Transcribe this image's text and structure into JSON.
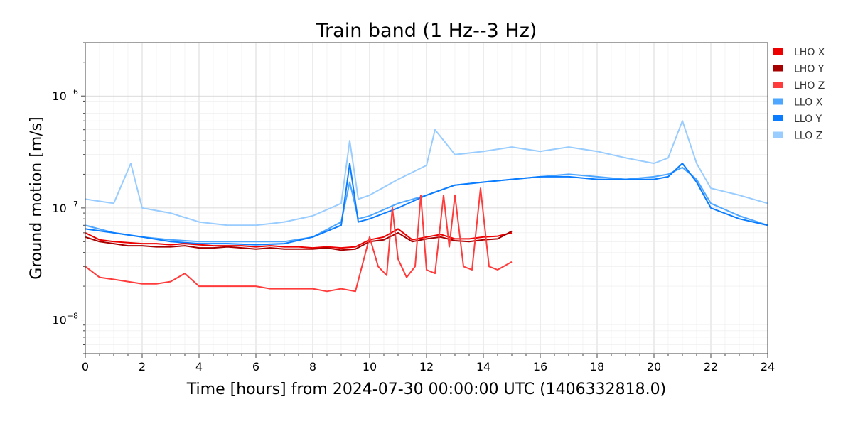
{
  "chart_data": {
    "type": "line",
    "title": "Train band (1 Hz--3 Hz)",
    "xlabel": "Time [hours] from 2024-07-30 00:00:00 UTC (1406332818.0)",
    "ylabel": "Ground motion [m/s]",
    "xlim": [
      0,
      24
    ],
    "ylim": [
      5e-09,
      3e-06
    ],
    "yscale": "log",
    "x_ticks": [
      0,
      2,
      4,
      6,
      8,
      10,
      12,
      14,
      16,
      18,
      20,
      22,
      24
    ],
    "y_ticks": [
      {
        "value": 1e-08,
        "base": "10",
        "exp": "−8"
      },
      {
        "value": 1e-07,
        "base": "10",
        "exp": "−7"
      },
      {
        "value": 1e-06,
        "base": "10",
        "exp": "−6"
      }
    ],
    "grid": true,
    "legend_position": "outside right, top",
    "series": [
      {
        "name": "LHO X",
        "color": "#ee0000",
        "x": [
          0,
          0.5,
          1,
          1.5,
          2,
          2.5,
          3,
          3.5,
          4,
          4.5,
          5,
          5.5,
          6,
          6.5,
          7,
          7.5,
          8,
          8.5,
          9,
          9.5,
          10,
          10.5,
          11,
          11.5,
          12,
          12.5,
          13,
          13.5,
          14,
          14.5,
          15
        ],
        "y": [
          6e-08,
          5.2e-08,
          5e-08,
          4.9e-08,
          4.8e-08,
          4.8e-08,
          4.7e-08,
          4.8e-08,
          4.7e-08,
          4.6e-08,
          4.6e-08,
          4.6e-08,
          4.5e-08,
          4.6e-08,
          4.5e-08,
          4.5e-08,
          4.4e-08,
          4.5e-08,
          4.4e-08,
          4.5e-08,
          5.2e-08,
          5.5e-08,
          6.5e-08,
          5.2e-08,
          5.5e-08,
          5.8e-08,
          5.3e-08,
          5.3e-08,
          5.5e-08,
          5.6e-08,
          6e-08
        ]
      },
      {
        "name": "LHO Y",
        "color": "#a60000",
        "x": [
          0,
          0.5,
          1,
          1.5,
          2,
          2.5,
          3,
          3.5,
          4,
          4.5,
          5,
          5.5,
          6,
          6.5,
          7,
          7.5,
          8,
          8.5,
          9,
          9.5,
          10,
          10.5,
          11,
          11.5,
          12,
          12.5,
          13,
          13.5,
          14,
          14.5,
          15
        ],
        "y": [
          5.5e-08,
          5e-08,
          4.8e-08,
          4.6e-08,
          4.6e-08,
          4.5e-08,
          4.5e-08,
          4.6e-08,
          4.4e-08,
          4.4e-08,
          4.5e-08,
          4.4e-08,
          4.3e-08,
          4.4e-08,
          4.3e-08,
          4.3e-08,
          4.3e-08,
          4.4e-08,
          4.2e-08,
          4.3e-08,
          5e-08,
          5.2e-08,
          6e-08,
          5e-08,
          5.3e-08,
          5.5e-08,
          5.1e-08,
          5e-08,
          5.2e-08,
          5.3e-08,
          6.2e-08
        ]
      },
      {
        "name": "LHO Z",
        "color": "#ff3b3b",
        "x": [
          0,
          0.5,
          1,
          1.5,
          2,
          2.5,
          3,
          3.5,
          4,
          4.5,
          5,
          5.5,
          6,
          6.5,
          7,
          7.5,
          8,
          8.5,
          9,
          9.5,
          10,
          10.3,
          10.6,
          10.8,
          11,
          11.3,
          11.6,
          11.8,
          12,
          12.3,
          12.6,
          12.8,
          13,
          13.3,
          13.6,
          13.9,
          14.2,
          14.5,
          15
        ],
        "y": [
          3e-08,
          2.4e-08,
          2.3e-08,
          2.2e-08,
          2.1e-08,
          2.1e-08,
          2.2e-08,
          2.6e-08,
          2e-08,
          2e-08,
          2e-08,
          2e-08,
          2e-08,
          1.9e-08,
          1.9e-08,
          1.9e-08,
          1.9e-08,
          1.8e-08,
          1.9e-08,
          1.8e-08,
          5.5e-08,
          3e-08,
          2.5e-08,
          1e-07,
          3.5e-08,
          2.4e-08,
          3e-08,
          1.3e-07,
          2.8e-08,
          2.6e-08,
          1.3e-07,
          4.5e-08,
          1.3e-07,
          3e-08,
          2.8e-08,
          1.5e-07,
          3e-08,
          2.8e-08,
          3.3e-08
        ]
      },
      {
        "name": "LLO X",
        "color": "#4da6ff",
        "x": [
          0,
          1,
          2,
          3,
          4,
          5,
          6,
          7,
          8,
          9,
          9.3,
          9.6,
          10,
          11,
          12,
          13,
          14,
          15,
          16,
          17,
          18,
          19,
          20,
          20.5,
          21,
          21.5,
          22,
          23,
          24
        ],
        "y": [
          7e-08,
          6e-08,
          5.5e-08,
          5.2e-08,
          5e-08,
          5e-08,
          5e-08,
          5e-08,
          5.5e-08,
          7.5e-08,
          1.7e-07,
          8e-08,
          8.5e-08,
          1.1e-07,
          1.3e-07,
          1.6e-07,
          1.7e-07,
          1.8e-07,
          1.9e-07,
          2e-07,
          1.9e-07,
          1.8e-07,
          1.9e-07,
          2e-07,
          2.3e-07,
          1.8e-07,
          1.1e-07,
          8.5e-08,
          7e-08
        ]
      },
      {
        "name": "LLO Y",
        "color": "#0a7cff",
        "x": [
          0,
          1,
          2,
          3,
          4,
          5,
          6,
          7,
          8,
          9,
          9.3,
          9.6,
          10,
          11,
          12,
          13,
          14,
          15,
          16,
          17,
          18,
          19,
          20,
          20.5,
          21,
          21.5,
          22,
          23,
          24
        ],
        "y": [
          6.5e-08,
          6e-08,
          5.5e-08,
          5e-08,
          4.8e-08,
          4.8e-08,
          4.7e-08,
          4.8e-08,
          5.5e-08,
          7e-08,
          2.5e-07,
          7.5e-08,
          8e-08,
          1e-07,
          1.3e-07,
          1.6e-07,
          1.7e-07,
          1.8e-07,
          1.9e-07,
          1.9e-07,
          1.8e-07,
          1.8e-07,
          1.8e-07,
          1.9e-07,
          2.5e-07,
          1.7e-07,
          1e-07,
          8e-08,
          7e-08
        ]
      },
      {
        "name": "LLO Z",
        "color": "#99ccff",
        "x": [
          0,
          1,
          1.6,
          2,
          3,
          4,
          5,
          6,
          7,
          8,
          9,
          9.3,
          9.6,
          10,
          11,
          12,
          12.3,
          13,
          14,
          15,
          16,
          17,
          18,
          19,
          20,
          20.5,
          21,
          21.5,
          22,
          23,
          24
        ],
        "y": [
          1.2e-07,
          1.1e-07,
          2.5e-07,
          1e-07,
          9e-08,
          7.5e-08,
          7e-08,
          7e-08,
          7.5e-08,
          8.5e-08,
          1.1e-07,
          4e-07,
          1.2e-07,
          1.3e-07,
          1.8e-07,
          2.4e-07,
          5e-07,
          3e-07,
          3.2e-07,
          3.5e-07,
          3.2e-07,
          3.5e-07,
          3.2e-07,
          2.8e-07,
          2.5e-07,
          2.8e-07,
          6e-07,
          2.5e-07,
          1.5e-07,
          1.3e-07,
          1.1e-07
        ]
      }
    ]
  }
}
